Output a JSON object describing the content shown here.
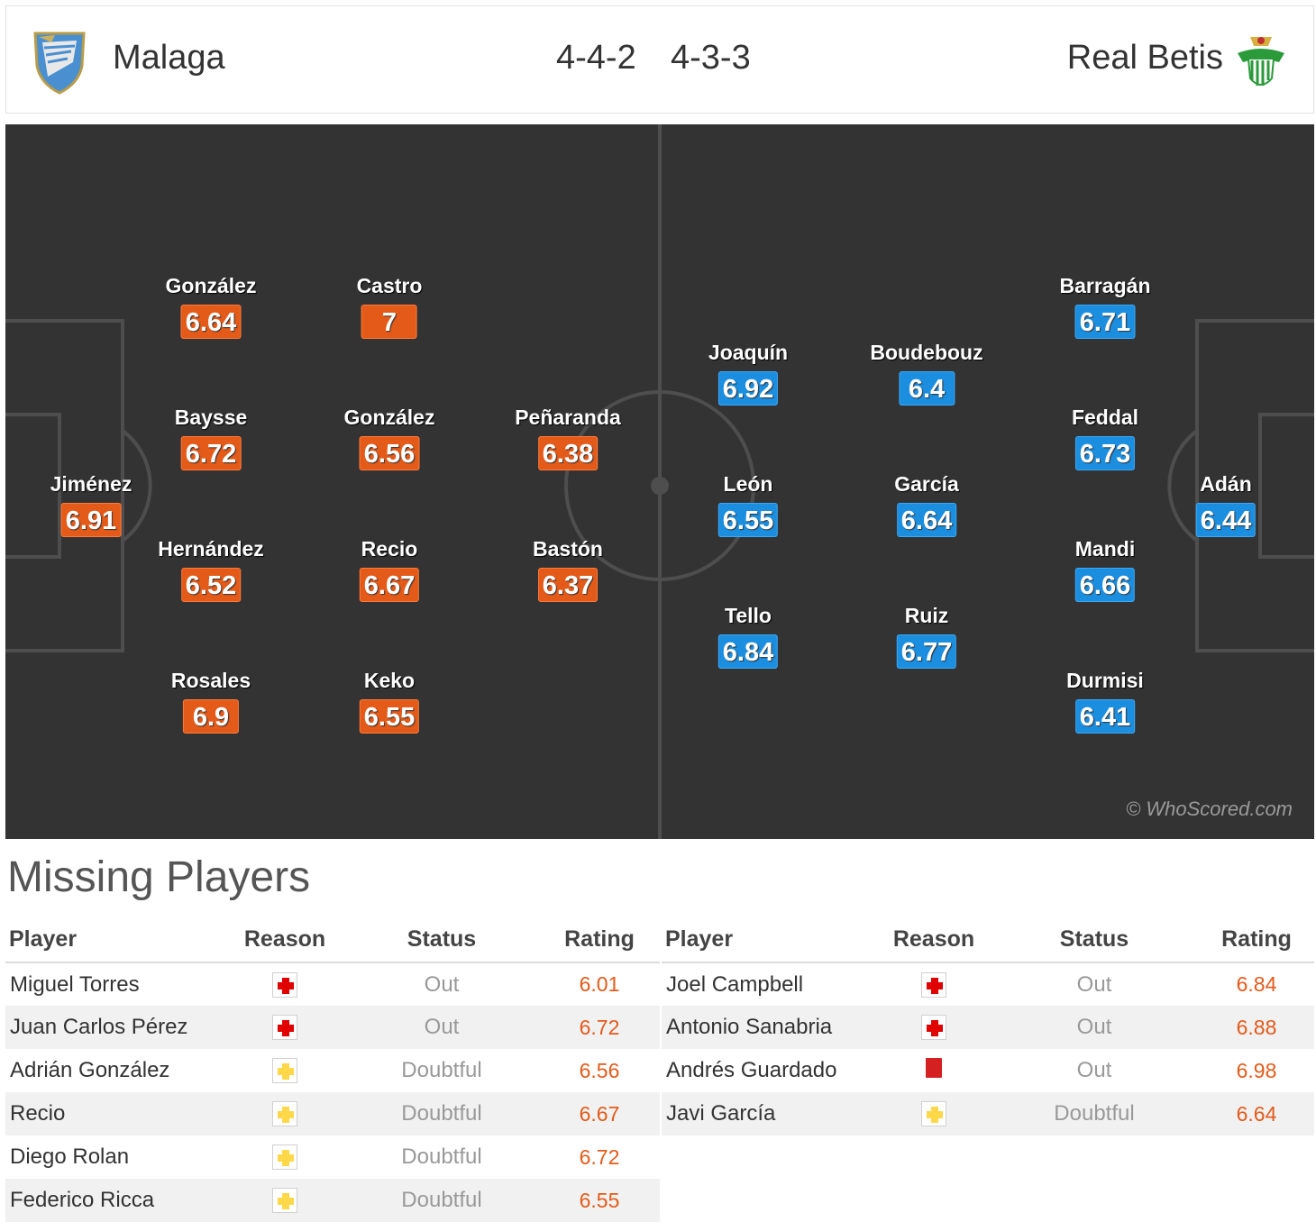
{
  "match": {
    "home": {
      "name": "Malaga",
      "formation": "4-4-2",
      "crest": "malaga-crest-icon"
    },
    "away": {
      "name": "Real Betis",
      "formation": "4-3-3",
      "crest": "real-betis-crest-icon"
    }
  },
  "pitch": {
    "watermark": "© WhoScored.com",
    "home_players": [
      {
        "name": "Jiménez",
        "rating": "6.91"
      },
      {
        "name": "González",
        "rating": "6.64"
      },
      {
        "name": "Baysse",
        "rating": "6.72"
      },
      {
        "name": "Hernández",
        "rating": "6.52"
      },
      {
        "name": "Rosales",
        "rating": "6.9"
      },
      {
        "name": "Castro",
        "rating": "7"
      },
      {
        "name": "González",
        "rating": "6.56"
      },
      {
        "name": "Recio",
        "rating": "6.67"
      },
      {
        "name": "Keko",
        "rating": "6.55"
      },
      {
        "name": "Peñaranda",
        "rating": "6.38"
      },
      {
        "name": "Bastón",
        "rating": "6.37"
      }
    ],
    "away_players": [
      {
        "name": "Adán",
        "rating": "6.44"
      },
      {
        "name": "Barragán",
        "rating": "6.71"
      },
      {
        "name": "Feddal",
        "rating": "6.73"
      },
      {
        "name": "Mandi",
        "rating": "6.66"
      },
      {
        "name": "Durmisi",
        "rating": "6.41"
      },
      {
        "name": "Boudebouz",
        "rating": "6.4"
      },
      {
        "name": "García",
        "rating": "6.64"
      },
      {
        "name": "Ruiz",
        "rating": "6.77"
      },
      {
        "name": "Joaquín",
        "rating": "6.92"
      },
      {
        "name": "León",
        "rating": "6.55"
      },
      {
        "name": "Tello",
        "rating": "6.84"
      }
    ]
  },
  "missing": {
    "title": "Missing Players",
    "columns": {
      "player": "Player",
      "reason": "Reason",
      "status": "Status",
      "rating": "Rating"
    },
    "colors": {
      "injury": "#e00000",
      "doubtful": "#ffd84a",
      "red_card": "#d42020"
    },
    "home": [
      {
        "player": "Miguel Torres",
        "reason": "injury-icon",
        "status": "Out",
        "rating": "6.01"
      },
      {
        "player": "Juan Carlos Pérez",
        "reason": "injury-icon",
        "status": "Out",
        "rating": "6.72"
      },
      {
        "player": "Adrián González",
        "reason": "doubtful-icon",
        "status": "Doubtful",
        "rating": "6.56"
      },
      {
        "player": "Recio",
        "reason": "doubtful-icon",
        "status": "Doubtful",
        "rating": "6.67"
      },
      {
        "player": "Diego Rolan",
        "reason": "doubtful-icon",
        "status": "Doubtful",
        "rating": "6.72"
      },
      {
        "player": "Federico Ricca",
        "reason": "doubtful-icon",
        "status": "Doubtful",
        "rating": "6.55"
      }
    ],
    "away": [
      {
        "player": "Joel Campbell",
        "reason": "injury-icon",
        "status": "Out",
        "rating": "6.84"
      },
      {
        "player": "Antonio Sanabria",
        "reason": "injury-icon",
        "status": "Out",
        "rating": "6.88"
      },
      {
        "player": "Andrés Guardado",
        "reason": "red-card-icon",
        "status": "Out",
        "rating": "6.98"
      },
      {
        "player": "Javi García",
        "reason": "doubtful-icon",
        "status": "Doubtful",
        "rating": "6.64"
      }
    ]
  }
}
